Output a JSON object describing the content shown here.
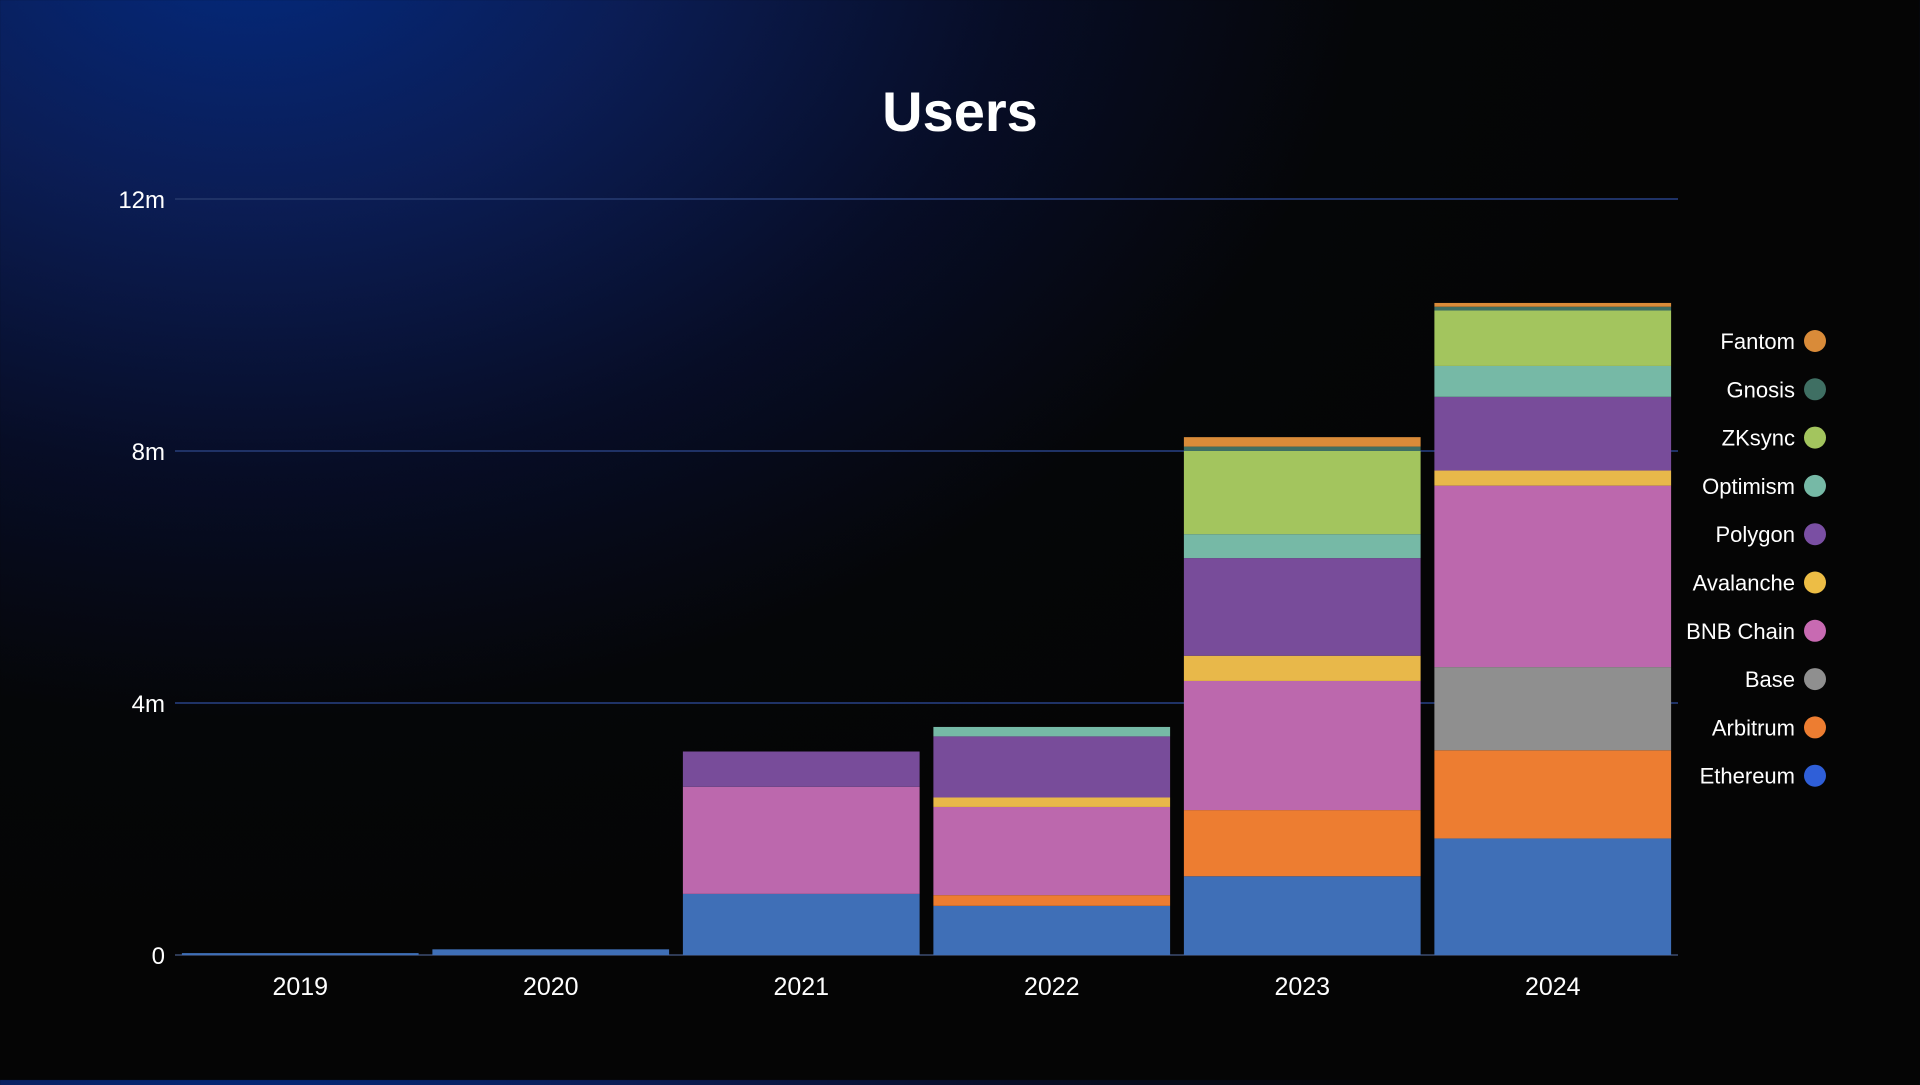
{
  "chart_data": {
    "type": "bar",
    "stacked": true,
    "title": "Users",
    "xlabel": "",
    "ylabel": "",
    "categories": [
      "2019",
      "2020",
      "2021",
      "2022",
      "2023",
      "2024"
    ],
    "ylim": [
      0,
      12000000
    ],
    "yticks": [
      {
        "value": 0,
        "label": "0"
      },
      {
        "value": 4000000,
        "label": "4m"
      },
      {
        "value": 8000000,
        "label": "8m"
      },
      {
        "value": 12000000,
        "label": "12m"
      }
    ],
    "grid": true,
    "legend_position": "right",
    "series": [
      {
        "name": "Ethereum",
        "color": "#3f6fb7",
        "legend_color": "#2f5fd8",
        "values": [
          30000,
          90000,
          970000,
          780000,
          1250000,
          1850000
        ]
      },
      {
        "name": "Arbitrum",
        "color": "#ed7d31",
        "legend_color": "#ed7d31",
        "values": [
          0,
          0,
          0,
          170000,
          1050000,
          1400000
        ]
      },
      {
        "name": "Base",
        "color": "#8f8f8f",
        "legend_color": "#8f8f8f",
        "values": [
          0,
          0,
          0,
          0,
          0,
          1320000
        ]
      },
      {
        "name": "BNB Chain",
        "color": "#bc68ad",
        "legend_color": "#c86ab2",
        "values": [
          0,
          0,
          1700000,
          1400000,
          2050000,
          2880000
        ]
      },
      {
        "name": "Avalanche",
        "color": "#e8b84a",
        "legend_color": "#edbd45",
        "values": [
          0,
          0,
          0,
          150000,
          400000,
          240000
        ]
      },
      {
        "name": "Polygon",
        "color": "#784c9a",
        "legend_color": "#7a4fa3",
        "values": [
          0,
          0,
          560000,
          970000,
          1550000,
          1170000
        ]
      },
      {
        "name": "Optimism",
        "color": "#76b9a6",
        "legend_color": "#76b9a6",
        "values": [
          0,
          0,
          0,
          150000,
          380000,
          490000
        ]
      },
      {
        "name": "ZKsync",
        "color": "#a3c55e",
        "legend_color": "#a3c55e",
        "values": [
          0,
          0,
          0,
          0,
          1320000,
          880000
        ]
      },
      {
        "name": "Gnosis",
        "color": "#3f6f63",
        "legend_color": "#3f6f63",
        "values": [
          0,
          0,
          0,
          0,
          70000,
          60000
        ]
      },
      {
        "name": "Fantom",
        "color": "#d98b39",
        "legend_color": "#d98b39",
        "values": [
          0,
          0,
          0,
          0,
          150000,
          60000
        ]
      }
    ]
  }
}
